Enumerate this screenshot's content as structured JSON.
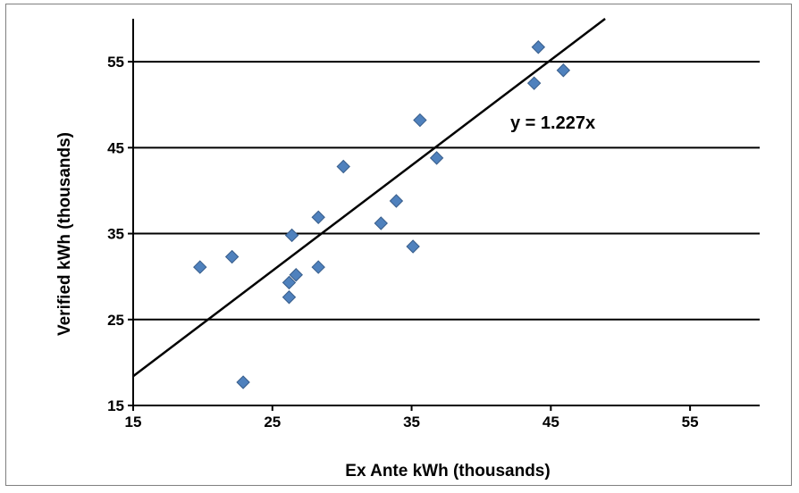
{
  "chart_data": {
    "type": "scatter",
    "title": "",
    "xlabel": "Ex Ante kWh (thousands)",
    "ylabel": "Verified kWh (thousands)",
    "xlim": [
      15,
      60
    ],
    "ylim": [
      15,
      60
    ],
    "x_ticks": [
      15,
      25,
      35,
      45,
      55
    ],
    "y_ticks": [
      15,
      25,
      35,
      45,
      55
    ],
    "grid": "horizontal",
    "marker": "diamond",
    "point_color": "#4f81bd",
    "point_edge_color": "#385d8a",
    "series": [
      {
        "points": [
          {
            "x": 19.8,
            "y": 31.1
          },
          {
            "x": 22.1,
            "y": 32.3
          },
          {
            "x": 22.9,
            "y": 17.7
          },
          {
            "x": 26.2,
            "y": 29.3
          },
          {
            "x": 26.2,
            "y": 27.6
          },
          {
            "x": 26.4,
            "y": 34.8
          },
          {
            "x": 26.7,
            "y": 30.2
          },
          {
            "x": 28.3,
            "y": 36.9
          },
          {
            "x": 28.3,
            "y": 31.1
          },
          {
            "x": 30.1,
            "y": 42.8
          },
          {
            "x": 32.8,
            "y": 36.2
          },
          {
            "x": 33.9,
            "y": 38.8
          },
          {
            "x": 35.1,
            "y": 33.5
          },
          {
            "x": 35.6,
            "y": 48.2
          },
          {
            "x": 36.8,
            "y": 43.8
          },
          {
            "x": 43.8,
            "y": 52.5
          },
          {
            "x": 44.1,
            "y": 56.7
          },
          {
            "x": 45.9,
            "y": 54.0
          }
        ]
      }
    ],
    "trendline": {
      "slope": 1.227,
      "intercept": 0,
      "color": "#000000"
    },
    "annotations": [
      {
        "text": "y = 1.227x"
      }
    ]
  }
}
